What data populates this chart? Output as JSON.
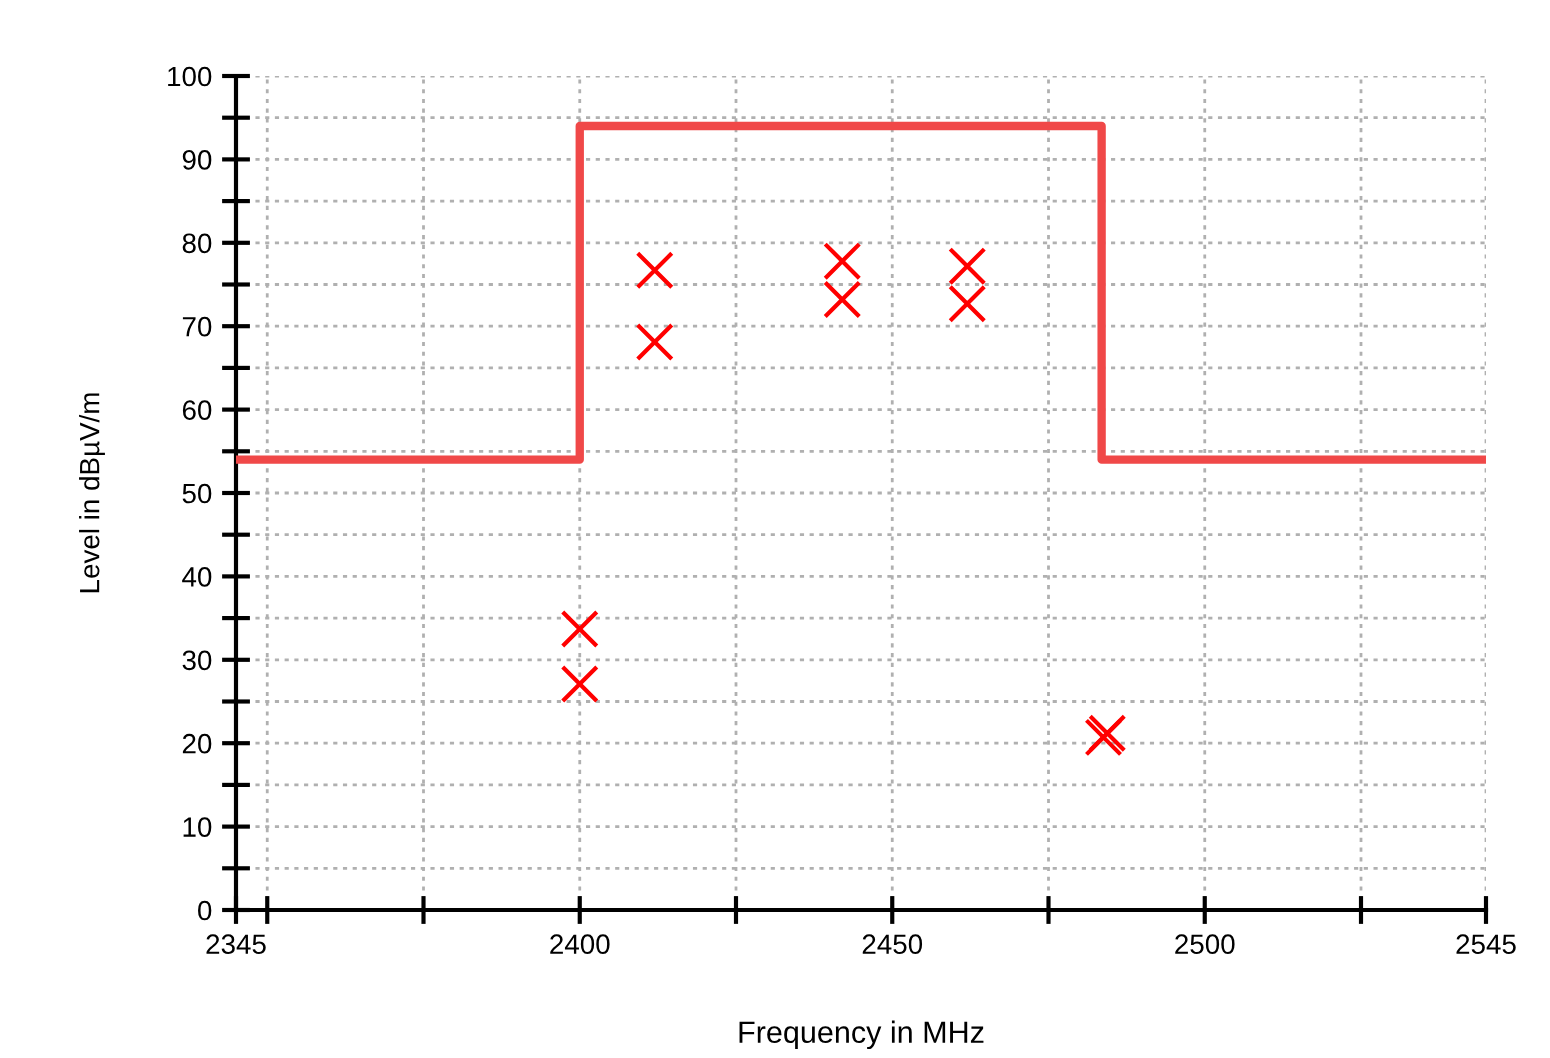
{
  "chart_data": {
    "type": "scatter",
    "xlabel": "Frequency in MHz",
    "ylabel": "Level in dBµV/m",
    "xlim": [
      2345,
      2545
    ],
    "ylim": [
      0,
      100
    ],
    "xticks": [
      2345,
      {
        "value": 2350,
        "label": null
      },
      {
        "value": 2375,
        "label": null
      },
      2400,
      {
        "value": 2425,
        "label": null
      },
      2450,
      {
        "value": 2475,
        "label": null
      },
      2500,
      {
        "value": 2525,
        "label": null
      },
      2545
    ],
    "yticks": [
      0,
      {
        "value": 5,
        "label": null
      },
      10,
      {
        "value": 15,
        "label": null
      },
      20,
      {
        "value": 25,
        "label": null
      },
      30,
      {
        "value": 35,
        "label": null
      },
      40,
      {
        "value": 45,
        "label": null
      },
      50,
      {
        "value": 55,
        "label": null
      },
      60,
      {
        "value": 65,
        "label": null
      },
      70,
      {
        "value": 75,
        "label": null
      },
      80,
      {
        "value": 85,
        "label": null
      },
      90,
      {
        "value": 95,
        "label": null
      },
      100
    ],
    "grid": true,
    "legend": false,
    "series": [
      {
        "type": "step",
        "color": "#f04848",
        "marker": "none",
        "x": [
          2345,
          2400,
          2483.5,
          2545
        ],
        "values": [
          54,
          94,
          54,
          54
        ]
      },
      {
        "color": "#ff0000",
        "marker": "cross",
        "x": [
          2400,
          2400,
          2412,
          2412,
          2442,
          2442,
          2462,
          2462,
          2483.8,
          2484.4
        ],
        "values": [
          33.7,
          27.1,
          76.7,
          68.1,
          77.8,
          73.2,
          77.2,
          72.7,
          20.7,
          21.2
        ]
      }
    ]
  }
}
